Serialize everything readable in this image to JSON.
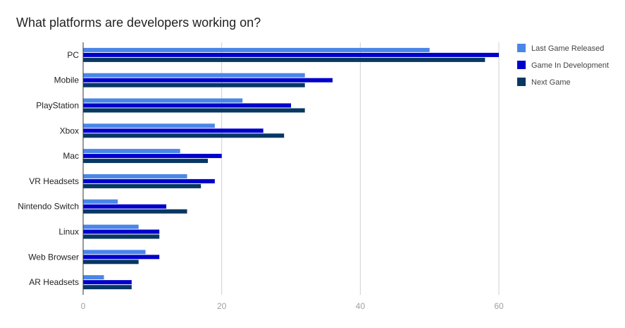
{
  "chart_data": {
    "type": "bar",
    "orientation": "horizontal",
    "title": "What platforms are developers working on?",
    "xlabel": "",
    "ylabel": "",
    "categories": [
      "PC",
      "Mobile",
      "PlayStation",
      "Xbox",
      "Mac",
      "VR Headsets",
      "Nintendo Switch",
      "Linux",
      "Web Browser",
      "AR Headsets"
    ],
    "series": [
      {
        "name": "Last Game Released",
        "color": "#4a86e8",
        "values": [
          50,
          32,
          23,
          19,
          14,
          15,
          5,
          8,
          9,
          3
        ]
      },
      {
        "name": "Game In Development",
        "color": "#0000cc",
        "values": [
          60,
          36,
          30,
          26,
          20,
          19,
          12,
          11,
          11,
          7
        ]
      },
      {
        "name": "Next Game",
        "color": "#073763",
        "values": [
          58,
          32,
          32,
          29,
          18,
          17,
          15,
          11,
          8,
          7
        ]
      }
    ],
    "xlim": [
      0,
      60
    ],
    "xticks": [
      0,
      20,
      40,
      60
    ],
    "grid": true,
    "legend_position": "right"
  }
}
